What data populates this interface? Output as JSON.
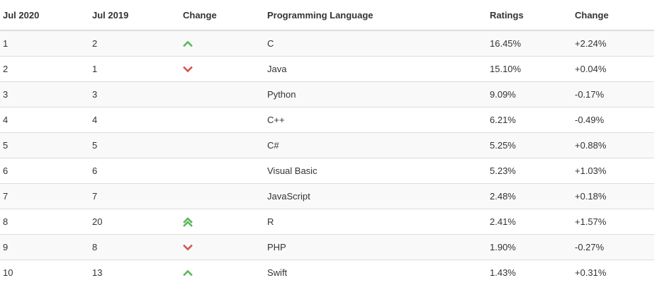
{
  "columns": [
    "Jul 2020",
    "Jul 2019",
    "Change",
    "Programming Language",
    "Ratings",
    "Change"
  ],
  "colors": {
    "up": "#5cb85c",
    "down": "#d9534f"
  },
  "rows": [
    {
      "jul2020": "1",
      "jul2019": "2",
      "trend": "up",
      "trend_icon": "chevron-up-icon",
      "language": "C",
      "ratings": "16.45%",
      "change": "+2.24%"
    },
    {
      "jul2020": "2",
      "jul2019": "1",
      "trend": "down",
      "trend_icon": "chevron-down-icon",
      "language": "Java",
      "ratings": "15.10%",
      "change": "+0.04%"
    },
    {
      "jul2020": "3",
      "jul2019": "3",
      "trend": "none",
      "trend_icon": "",
      "language": "Python",
      "ratings": "9.09%",
      "change": "-0.17%"
    },
    {
      "jul2020": "4",
      "jul2019": "4",
      "trend": "none",
      "trend_icon": "",
      "language": "C++",
      "ratings": "6.21%",
      "change": "-0.49%"
    },
    {
      "jul2020": "5",
      "jul2019": "5",
      "trend": "none",
      "trend_icon": "",
      "language": "C#",
      "ratings": "5.25%",
      "change": "+0.88%"
    },
    {
      "jul2020": "6",
      "jul2019": "6",
      "trend": "none",
      "trend_icon": "",
      "language": "Visual Basic",
      "ratings": "5.23%",
      "change": "+1.03%"
    },
    {
      "jul2020": "7",
      "jul2019": "7",
      "trend": "none",
      "trend_icon": "",
      "language": "JavaScript",
      "ratings": "2.48%",
      "change": "+0.18%"
    },
    {
      "jul2020": "8",
      "jul2019": "20",
      "trend": "double-up",
      "trend_icon": "double-chevron-up-icon",
      "language": "R",
      "ratings": "2.41%",
      "change": "+1.57%"
    },
    {
      "jul2020": "9",
      "jul2019": "8",
      "trend": "down",
      "trend_icon": "chevron-down-icon",
      "language": "PHP",
      "ratings": "1.90%",
      "change": "-0.27%"
    },
    {
      "jul2020": "10",
      "jul2019": "13",
      "trend": "up",
      "trend_icon": "chevron-up-icon",
      "language": "Swift",
      "ratings": "1.43%",
      "change": "+0.31%"
    }
  ]
}
